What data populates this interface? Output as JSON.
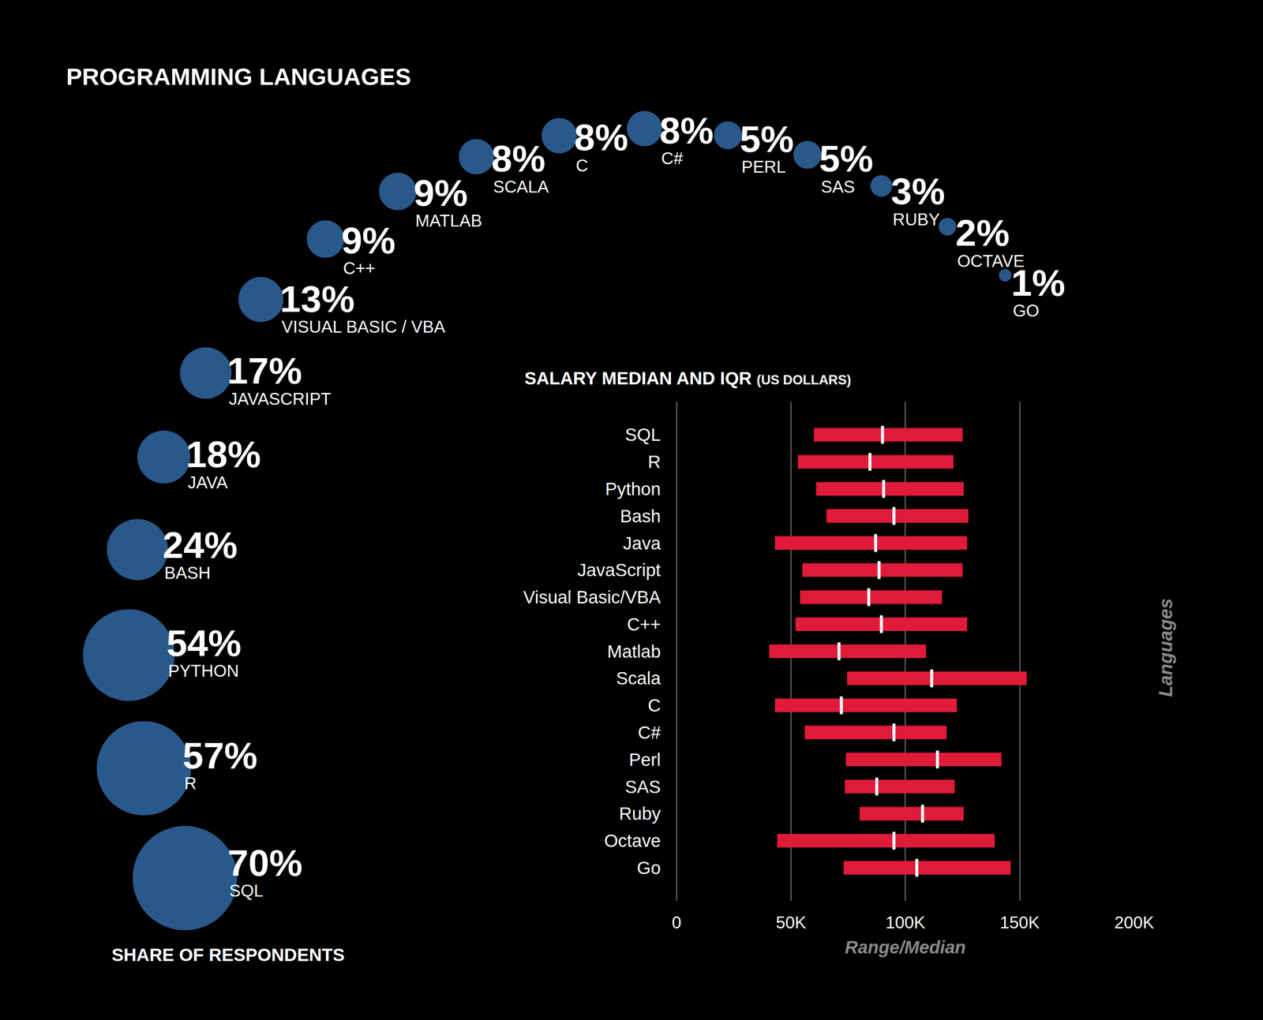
{
  "chart_data": [
    {
      "type": "bubble",
      "title": "PROGRAMMING LANGUAGES",
      "xlabel": "SHARE OF RESPONDENTS",
      "categories": [
        "SQL",
        "R",
        "PYTHON",
        "BASH",
        "JAVA",
        "JAVASCRIPT",
        "VISUAL BASIC / VBA",
        "C++",
        "MATLAB",
        "SCALA",
        "C",
        "C#",
        "PERL",
        "SAS",
        "RUBY",
        "OCTAVE",
        "GO"
      ],
      "values": [
        70,
        57,
        54,
        24,
        18,
        17,
        13,
        9,
        9,
        8,
        8,
        8,
        5,
        5,
        3,
        2,
        1
      ],
      "value_labels": [
        "70%",
        "57%",
        "54%",
        "24%",
        "18%",
        "17%",
        "13%",
        "9%",
        "9%",
        "8%",
        "8%",
        "8%",
        "5%",
        "5%",
        "3%",
        "2%",
        "1%"
      ],
      "color": "#3b7dc4",
      "data_labels": true,
      "tick_labels": false
    },
    {
      "type": "bar",
      "orientation": "horizontal",
      "title": "SALARY MEDIAN AND IQR",
      "subtitle": "(US DOLLARS)",
      "xlabel": "Range/Median",
      "ylabel": "Languages",
      "categories": [
        "SQL",
        "R",
        "Python",
        "Bash",
        "Java",
        "JavaScript",
        "Visual Basic/VBA",
        "C++",
        "Matlab",
        "Scala",
        "C",
        "C#",
        "Perl",
        "SAS",
        "Ruby",
        "Octave",
        "Go"
      ],
      "q1": [
        60000,
        53000,
        61000,
        65500,
        43000,
        55000,
        54000,
        52000,
        40500,
        74500,
        43000,
        56000,
        74000,
        73500,
        80000,
        44000,
        73000
      ],
      "median": [
        90000,
        84500,
        90500,
        95000,
        87000,
        88500,
        84000,
        89500,
        71000,
        111500,
        72000,
        95000,
        114000,
        87500,
        107500,
        95000,
        105000
      ],
      "q3": [
        125000,
        121000,
        125500,
        127500,
        127000,
        125000,
        116000,
        127000,
        109000,
        153000,
        122500,
        118000,
        142000,
        121500,
        125500,
        139000,
        146000
      ],
      "color": "#e01b3a",
      "xlim": [
        0,
        200000
      ],
      "xticks": [
        0,
        {
          "value": 50000,
          "label": "50K"
        },
        {
          "value": 100000,
          "label": "100K"
        },
        {
          "value": 150000,
          "label": "150K"
        },
        {
          "value": 200000,
          "label": "200K"
        }
      ],
      "grid": true
    }
  ]
}
